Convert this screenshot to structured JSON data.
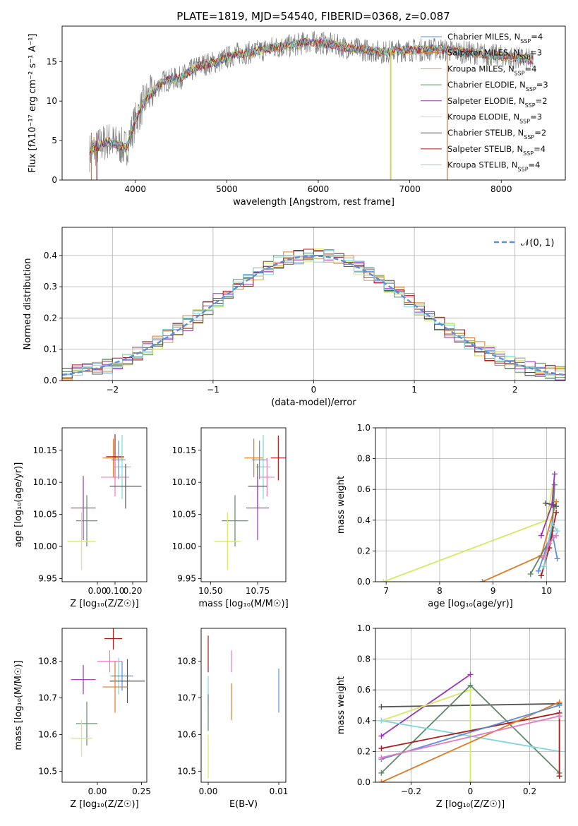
{
  "title": "PLATE=1819, MJD=54540, FIBERID=0368, z=0.087",
  "models": [
    {
      "name": "Chabrier MILES",
      "nssp": "4",
      "color": "#5b8fd8"
    },
    {
      "name": "Salpeter MILES",
      "nssp": "3",
      "color": "#e07b28"
    },
    {
      "name": "Kroupa MILES",
      "nssp": "4",
      "color": "#c8a55a"
    },
    {
      "name": "Chabrier ELODIE",
      "nssp": "3",
      "color": "#5f8a6a"
    },
    {
      "name": "Salpeter ELODIE",
      "nssp": "2",
      "color": "#9a35b8"
    },
    {
      "name": "Kroupa ELODIE",
      "nssp": "3",
      "color": "#d4ea62"
    },
    {
      "name": "Chabrier STELIB",
      "nssp": "2",
      "color": "#555555"
    },
    {
      "name": "Salpeter STELIB",
      "nssp": "4",
      "color": "#b01a1a"
    },
    {
      "name": "Kroupa STELIB",
      "nssp": "4",
      "color": "#7fd6dc"
    }
  ],
  "extra_colors": [
    "#e97ac0"
  ],
  "chart_data": [
    {
      "type": "line",
      "title": "PLATE=1819, MJD=54540, FIBERID=0368, z=0.087",
      "xlabel": "wavelength [Angstrom, rest frame]",
      "ylabel": "Flux [f_λ 10^-17 erg cm^-2 s^-1 A^-1]",
      "xlim": [
        3200,
        8700
      ],
      "ylim": [
        0,
        19.5
      ],
      "xticks": [
        4000,
        5000,
        6000,
        7000,
        8000
      ],
      "yticks": [
        0,
        5,
        10,
        15
      ],
      "spectrum_shape": {
        "x": [
          3500,
          3700,
          3900,
          4000,
          4100,
          4300,
          4500,
          4700,
          4900,
          5100,
          5300,
          5500,
          5700,
          5900,
          6100,
          6300,
          6500,
          6700,
          6900,
          7100,
          7300,
          7500,
          7700,
          7900,
          8100,
          8300
        ],
        "y": [
          3.5,
          5.0,
          4.0,
          7.5,
          10.0,
          12.5,
          13.0,
          14.5,
          15.0,
          16.0,
          16.2,
          16.8,
          17.0,
          17.5,
          17.3,
          16.8,
          16.5,
          16.2,
          16.4,
          16.5,
          16.6,
          16.3,
          16.1,
          15.8,
          15.6,
          15.2
        ]
      }
    },
    {
      "type": "line",
      "title": "",
      "xlabel": "(data-model)/error",
      "ylabel": "Normed distribution",
      "xlim": [
        -2.5,
        2.5
      ],
      "ylim": [
        0,
        0.49
      ],
      "xticks": [
        -2,
        -1,
        0,
        1,
        2
      ],
      "yticks": [
        0.0,
        0.1,
        0.2,
        0.3,
        0.4
      ],
      "legend": "𝒩(0, 1)",
      "legend_loc": "upper right",
      "grid": true
    },
    {
      "type": "scatter",
      "xlabel": "Z [log10(Z/Z⊙)]",
      "ylabel": "age  [log10(age/yr)]",
      "xlim": [
        -0.2,
        0.28
      ],
      "ylim": [
        9.945,
        10.185
      ],
      "xticks": [
        0.0,
        0.1,
        0.2
      ],
      "yticks": [
        9.95,
        10.0,
        10.05,
        10.1,
        10.15
      ],
      "points": [
        {
          "x": 0.09,
          "y": 10.138,
          "xerr": 0.06,
          "yerr": 0.03,
          "ci": 1
        },
        {
          "x": 0.1,
          "y": 10.14,
          "xerr": 0.05,
          "yerr": 0.035,
          "ci": 7
        },
        {
          "x": 0.14,
          "y": 10.124,
          "xerr": 0.05,
          "yerr": 0.05,
          "ci": 8
        },
        {
          "x": 0.12,
          "y": 10.135,
          "xerr": 0.04,
          "yerr": 0.03,
          "ci": 0
        },
        {
          "x": 0.1,
          "y": 10.108,
          "xerr": 0.08,
          "yerr": 0.03,
          "ci": 9
        },
        {
          "x": 0.16,
          "y": 10.094,
          "xerr": 0.09,
          "yerr": 0.035,
          "ci": 6
        },
        {
          "x": -0.08,
          "y": 10.06,
          "xerr": 0.07,
          "yerr": 0.05,
          "ci": 4
        },
        {
          "x": -0.06,
          "y": 10.04,
          "xerr": 0.06,
          "yerr": 0.04,
          "ci": 3
        },
        {
          "x": -0.09,
          "y": 10.008,
          "xerr": 0.08,
          "yerr": 0.045,
          "ci": 5
        }
      ]
    },
    {
      "type": "scatter",
      "xlabel": "mass [log10(M/M⊙)]",
      "ylabel": "",
      "xlim": [
        10.45,
        10.9
      ],
      "ylim": [
        9.945,
        10.185
      ],
      "xticks": [
        10.5,
        10.75
      ],
      "yticks": [
        9.95,
        10.0,
        10.05,
        10.1,
        10.15
      ],
      "points": [
        {
          "x": 10.73,
          "y": 10.138,
          "xerr": 0.05,
          "yerr": 0.03,
          "ci": 1
        },
        {
          "x": 10.86,
          "y": 10.138,
          "xerr": 0.04,
          "yerr": 0.035,
          "ci": 7
        },
        {
          "x": 10.78,
          "y": 10.124,
          "xerr": 0.04,
          "yerr": 0.05,
          "ci": 8
        },
        {
          "x": 10.76,
          "y": 10.135,
          "xerr": 0.04,
          "yerr": 0.03,
          "ci": 0
        },
        {
          "x": 10.8,
          "y": 10.108,
          "xerr": 0.04,
          "yerr": 0.03,
          "ci": 9
        },
        {
          "x": 10.75,
          "y": 10.094,
          "xerr": 0.05,
          "yerr": 0.035,
          "ci": 6
        },
        {
          "x": 10.75,
          "y": 10.06,
          "xerr": 0.06,
          "yerr": 0.05,
          "ci": 4
        },
        {
          "x": 10.63,
          "y": 10.04,
          "xerr": 0.07,
          "yerr": 0.04,
          "ci": 3
        },
        {
          "x": 10.59,
          "y": 10.008,
          "xerr": 0.07,
          "yerr": 0.045,
          "ci": 5
        }
      ]
    },
    {
      "type": "line",
      "xlabel": "age  [log10(age/yr)]",
      "ylabel": "mass weight",
      "xlim": [
        6.8,
        10.35
      ],
      "ylim": [
        0,
        1
      ],
      "xticks": [
        7,
        8,
        9,
        10
      ],
      "yticks": [
        0.0,
        0.2,
        0.4,
        0.6,
        0.8,
        1.0
      ],
      "grid": true,
      "series": [
        {
          "ci": 5,
          "x": [
            6.95,
            10.0,
            10.1
          ],
          "y": [
            0.0,
            0.4,
            0.6
          ]
        },
        {
          "ci": 1,
          "x": [
            8.8,
            9.9,
            10.18
          ],
          "y": [
            0.0,
            0.17,
            0.52
          ]
        },
        {
          "ci": 3,
          "x": [
            9.7,
            10.1,
            10.15
          ],
          "y": [
            0.05,
            0.3,
            0.63
          ]
        },
        {
          "ci": 6,
          "x": [
            9.98,
            10.12,
            10.18
          ],
          "y": [
            0.51,
            0.5,
            0.49
          ]
        },
        {
          "ci": 4,
          "x": [
            9.9,
            10.1,
            10.15
          ],
          "y": [
            0.3,
            0.5,
            0.7
          ]
        },
        {
          "ci": 0,
          "x": [
            9.85,
            10.1,
            10.2
          ],
          "y": [
            0.07,
            0.33,
            0.15
          ]
        },
        {
          "ci": 7,
          "x": [
            9.9,
            10.05,
            10.18
          ],
          "y": [
            0.04,
            0.22,
            0.45
          ]
        },
        {
          "ci": 8,
          "x": [
            9.95,
            10.1,
            10.2
          ],
          "y": [
            0.1,
            0.38,
            0.33
          ]
        },
        {
          "ci": 9,
          "x": [
            9.95,
            10.05,
            10.18
          ],
          "y": [
            0.16,
            0.25,
            0.3
          ]
        }
      ]
    },
    {
      "type": "scatter",
      "xlabel": "Z [log10(Z/Z⊙)]",
      "ylabel": "mass [log10(M/M⊙)]",
      "xlim": [
        -0.2,
        0.28
      ],
      "ylim": [
        10.47,
        10.89
      ],
      "xticks": [
        0.0,
        0.25
      ],
      "yticks": [
        10.5,
        10.6,
        10.7,
        10.8
      ],
      "points": [
        {
          "x": 0.09,
          "y": 10.862,
          "xerr": 0.05,
          "yerr": 0.03,
          "ci": 7
        },
        {
          "x": 0.07,
          "y": 10.8,
          "xerr": 0.07,
          "yerr": 0.03,
          "ci": 9
        },
        {
          "x": 0.12,
          "y": 10.76,
          "xerr": 0.05,
          "yerr": 0.05,
          "ci": 8
        },
        {
          "x": 0.14,
          "y": 10.76,
          "xerr": 0.06,
          "yerr": 0.04,
          "ci": 0
        },
        {
          "x": 0.17,
          "y": 10.746,
          "xerr": 0.1,
          "yerr": 0.06,
          "ci": 6
        },
        {
          "x": 0.1,
          "y": 10.73,
          "xerr": 0.07,
          "yerr": 0.07,
          "ci": 1
        },
        {
          "x": -0.08,
          "y": 10.75,
          "xerr": 0.07,
          "yerr": 0.04,
          "ci": 4
        },
        {
          "x": -0.06,
          "y": 10.63,
          "xerr": 0.06,
          "yerr": 0.06,
          "ci": 3
        },
        {
          "x": -0.09,
          "y": 10.59,
          "xerr": 0.06,
          "yerr": 0.05,
          "ci": 5
        }
      ]
    },
    {
      "type": "scatter",
      "xlabel": "E(B-V)",
      "ylabel": "",
      "xlim": [
        -0.001,
        0.011
      ],
      "ylim": [
        10.47,
        10.89
      ],
      "xticks": [
        0.0,
        0.01
      ],
      "yticks": [
        10.5,
        10.6,
        10.7,
        10.8
      ],
      "points": [
        {
          "x": 0.0,
          "y": 10.82,
          "yerr": 0.05,
          "ci": 7
        },
        {
          "x": 0.0,
          "y": 10.72,
          "yerr": 0.04,
          "ci": 8
        },
        {
          "x": 0.0,
          "y": 10.66,
          "yerr": 0.05,
          "ci": 3
        },
        {
          "x": 0.0,
          "y": 10.54,
          "yerr": 0.06,
          "ci": 5
        },
        {
          "x": 0.0033,
          "y": 10.8,
          "yerr": 0.03,
          "ci": 9
        },
        {
          "x": 0.0033,
          "y": 10.69,
          "yerr": 0.05,
          "ci": 1
        },
        {
          "x": 0.01,
          "y": 10.72,
          "yerr": 0.06,
          "ci": 0
        }
      ]
    },
    {
      "type": "line",
      "xlabel": "Z [log10(Z/Z⊙)]",
      "ylabel": "mass weight",
      "xlim": [
        -0.32,
        0.32
      ],
      "ylim": [
        0,
        1
      ],
      "xticks": [
        -0.2,
        0.0,
        0.2
      ],
      "yticks": [
        0.0,
        0.2,
        0.4,
        0.6,
        0.8,
        1.0
      ],
      "grid": true,
      "series": [
        {
          "ci": 6,
          "x": [
            -0.3,
            0.3
          ],
          "y": [
            0.49,
            0.51
          ]
        },
        {
          "ci": 4,
          "x": [
            -0.3,
            0.0
          ],
          "y": [
            0.3,
            0.7
          ]
        },
        {
          "ci": 5,
          "x": [
            -0.3,
            0.0,
            0.0
          ],
          "y": [
            0.4,
            0.6,
            0.0
          ]
        },
        {
          "ci": 3,
          "x": [
            -0.3,
            0.0,
            0.3
          ],
          "y": [
            0.06,
            0.63,
            0.06
          ]
        },
        {
          "ci": 8,
          "x": [
            -0.3,
            0.3
          ],
          "y": [
            0.4,
            0.2
          ]
        },
        {
          "ci": 7,
          "x": [
            -0.3,
            0.3,
            0.3
          ],
          "y": [
            0.22,
            0.45,
            0.04
          ]
        },
        {
          "ci": 1,
          "x": [
            -0.3,
            0.3
          ],
          "y": [
            0.0,
            0.52
          ]
        },
        {
          "ci": 0,
          "x": [
            -0.3,
            0.3
          ],
          "y": [
            0.15,
            0.5
          ]
        },
        {
          "ci": 9,
          "x": [
            -0.3,
            0.3
          ],
          "y": [
            0.16,
            0.43
          ]
        }
      ]
    }
  ]
}
